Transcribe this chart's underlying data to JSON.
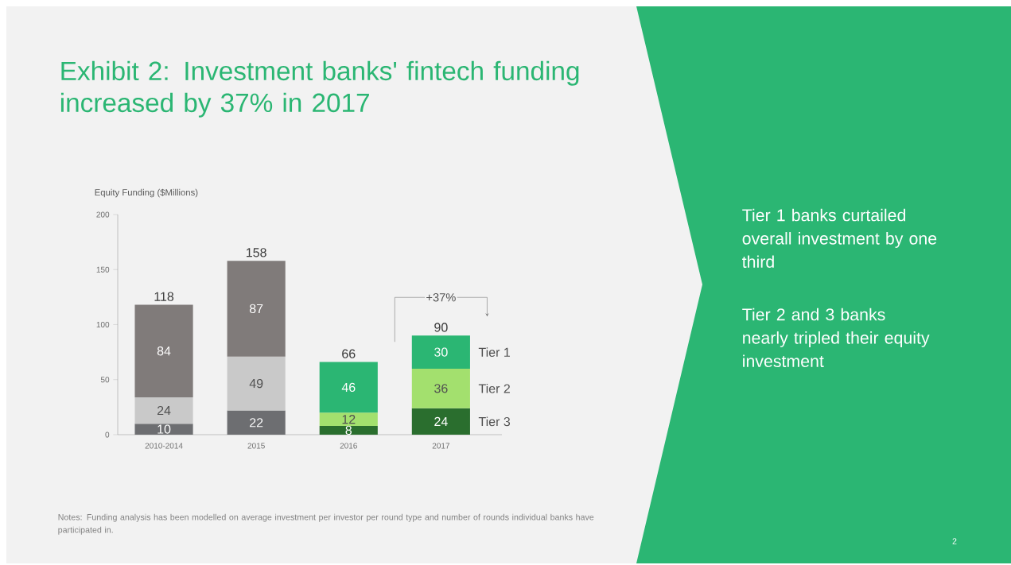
{
  "chart_data": {
    "type": "bar",
    "stacked": true,
    "data_labels": true,
    "title": "Exhibit 2: Investment banks' fintech funding increased by 37% in 2017",
    "ylabel": "Equity Funding ($Millions)",
    "categories": [
      "2010-2014",
      "2015",
      "2016",
      "2017"
    ],
    "series": [
      {
        "name": "Tier 3",
        "colors": [
          "#6d6e71",
          "#6d6e71",
          "#2a6e2e",
          "#2a6e2e"
        ],
        "values": [
          10,
          22,
          8,
          24
        ]
      },
      {
        "name": "Tier 2",
        "colors": [
          "#c9c9c9",
          "#c9c9c9",
          "#a3e06e",
          "#a3e06e"
        ],
        "values": [
          24,
          49,
          12,
          36
        ]
      },
      {
        "name": "Tier 1",
        "colors": [
          "#807b7a",
          "#807b7a",
          "#2bb673",
          "#2bb673"
        ],
        "values": [
          84,
          87,
          46,
          30
        ]
      }
    ],
    "totals": [
      "118",
      "158",
      "66",
      "90"
    ],
    "ylim": [
      0,
      200
    ],
    "yticks": [
      0,
      50,
      100,
      150,
      200
    ],
    "grid": false,
    "annotations": [
      "+37%",
      "Tier 1 banks curtailed overall investment by one third",
      "Tier 2 and 3 banks nearly tripled their equity investment",
      "Notes: Funding analysis has been modelled on average investment per investor per round type and number of rounds individual banks have participated in.",
      "2"
    ]
  }
}
